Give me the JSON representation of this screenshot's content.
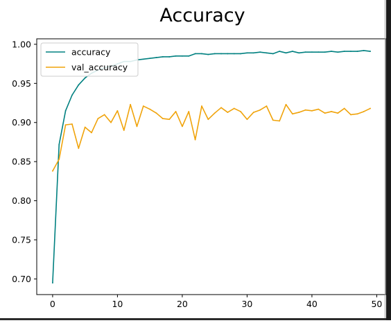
{
  "chart_data": {
    "type": "line",
    "title": "Accuracy",
    "xlabel": "",
    "ylabel": "",
    "xlim": [
      -2.45,
      51.45
    ],
    "ylim": [
      0.68,
      1.007
    ],
    "xticks": [
      0,
      10,
      20,
      30,
      40,
      50
    ],
    "yticks": [
      0.7,
      0.75,
      0.8,
      0.85,
      0.9,
      0.95,
      1.0
    ],
    "xtick_labels": [
      "0",
      "10",
      "20",
      "30",
      "40",
      "50"
    ],
    "ytick_labels": [
      "0.70",
      "0.75",
      "0.80",
      "0.85",
      "0.90",
      "0.95",
      "1.00"
    ],
    "grid": false,
    "legend_position": "upper-left",
    "x": [
      0,
      1,
      2,
      3,
      4,
      5,
      6,
      7,
      8,
      9,
      10,
      11,
      12,
      13,
      14,
      15,
      16,
      17,
      18,
      19,
      20,
      21,
      22,
      23,
      24,
      25,
      26,
      27,
      28,
      29,
      30,
      31,
      32,
      33,
      34,
      35,
      36,
      37,
      38,
      39,
      40,
      41,
      42,
      43,
      44,
      45,
      46,
      47,
      48,
      49
    ],
    "series": [
      {
        "name": "accuracy",
        "color": "#008080",
        "values": [
          0.695,
          0.872,
          0.915,
          0.935,
          0.948,
          0.957,
          0.963,
          0.967,
          0.97,
          0.972,
          0.975,
          0.978,
          0.978,
          0.98,
          0.981,
          0.982,
          0.983,
          0.984,
          0.984,
          0.985,
          0.985,
          0.985,
          0.988,
          0.988,
          0.987,
          0.988,
          0.988,
          0.988,
          0.988,
          0.988,
          0.989,
          0.989,
          0.99,
          0.989,
          0.988,
          0.991,
          0.989,
          0.991,
          0.989,
          0.99,
          0.99,
          0.99,
          0.99,
          0.991,
          0.99,
          0.991,
          0.991,
          0.991,
          0.992,
          0.991
        ]
      },
      {
        "name": "val_accuracy",
        "color": "#f0a30a",
        "values": [
          0.838,
          0.853,
          0.897,
          0.898,
          0.867,
          0.894,
          0.887,
          0.905,
          0.91,
          0.9,
          0.915,
          0.89,
          0.923,
          0.895,
          0.921,
          0.917,
          0.912,
          0.905,
          0.904,
          0.914,
          0.895,
          0.914,
          0.878,
          0.921,
          0.904,
          0.912,
          0.919,
          0.913,
          0.918,
          0.914,
          0.904,
          0.913,
          0.916,
          0.921,
          0.903,
          0.902,
          0.923,
          0.911,
          0.913,
          0.916,
          0.915,
          0.917,
          0.912,
          0.914,
          0.912,
          0.918,
          0.91,
          0.911,
          0.914,
          0.918
        ]
      }
    ]
  }
}
